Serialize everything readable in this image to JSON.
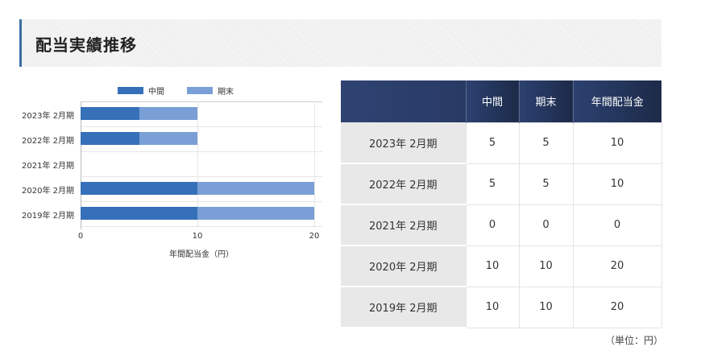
{
  "section": {
    "title": "配当実績推移"
  },
  "colors": {
    "interim": "#3570b8",
    "year_end": "#7a9fd6",
    "header_bg": "#263863",
    "accent_border": "#3b6ea5"
  },
  "chart_data": {
    "type": "bar",
    "orientation": "horizontal",
    "stacked": true,
    "title": "",
    "categories": [
      "2023年 2月期",
      "2022年 2月期",
      "2021年 2月期",
      "2020年 2月期",
      "2019年 2月期"
    ],
    "series": [
      {
        "name": "中間",
        "values": [
          5,
          5,
          0,
          10,
          10
        ],
        "color": "#3570b8"
      },
      {
        "name": "期末",
        "values": [
          5,
          5,
          0,
          10,
          10
        ],
        "color": "#7a9fd6"
      }
    ],
    "xlabel": "年間配当金（円）",
    "ylabel": "",
    "xlim": [
      0,
      20
    ],
    "x_ticks": [
      "0",
      "10",
      "20"
    ],
    "grid": true,
    "legend_position": "top"
  },
  "legend": [
    {
      "label": "中間"
    },
    {
      "label": "期末"
    }
  ],
  "table": {
    "headers": [
      "",
      "中間",
      "期末",
      "年間配当金"
    ],
    "rows": [
      {
        "period": "2023年 2月期",
        "interim": "5",
        "year_end": "5",
        "annual": "10"
      },
      {
        "period": "2022年 2月期",
        "interim": "5",
        "year_end": "5",
        "annual": "10"
      },
      {
        "period": "2021年 2月期",
        "interim": "0",
        "year_end": "0",
        "annual": "0"
      },
      {
        "period": "2020年 2月期",
        "interim": "10",
        "year_end": "10",
        "annual": "20"
      },
      {
        "period": "2019年 2月期",
        "interim": "10",
        "year_end": "10",
        "annual": "20"
      }
    ],
    "unit_note": "（単位：円）"
  }
}
